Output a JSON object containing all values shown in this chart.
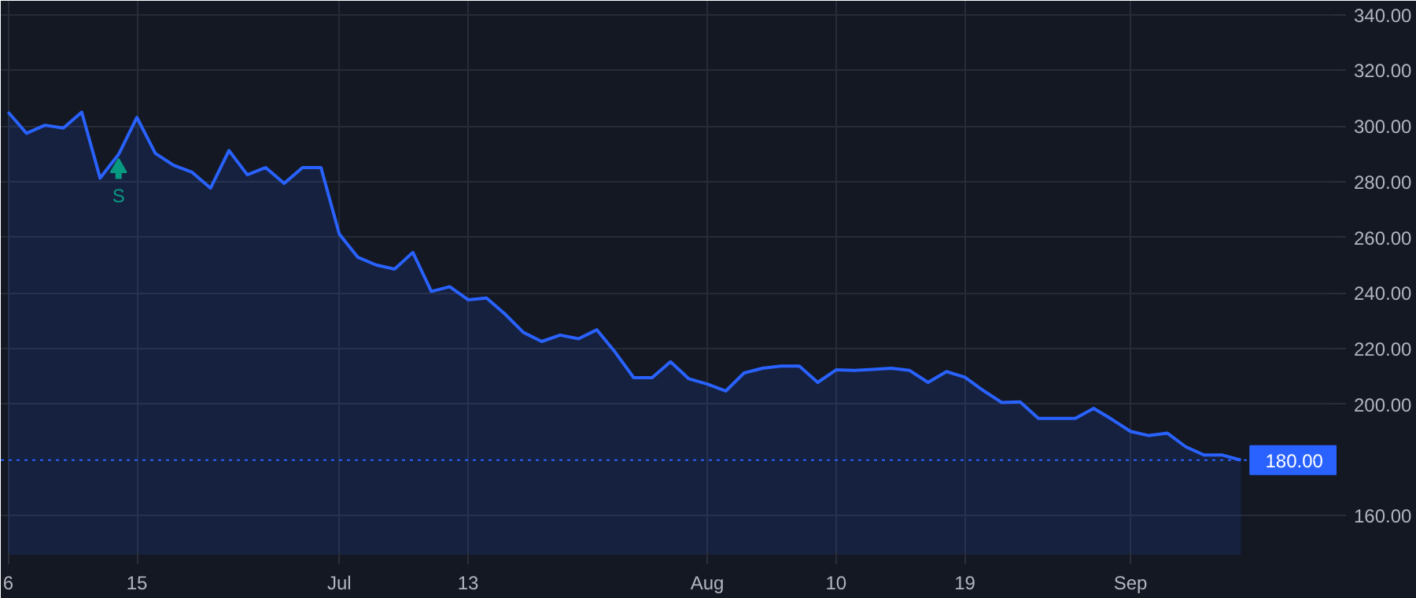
{
  "chart_data": {
    "type": "area",
    "categories": [
      "6",
      null,
      null,
      null,
      null,
      null,
      null,
      "15",
      null,
      null,
      null,
      null,
      null,
      null,
      null,
      null,
      null,
      null,
      "Jul",
      null,
      null,
      null,
      null,
      null,
      null,
      "13",
      null,
      null,
      null,
      null,
      null,
      null,
      null,
      null,
      null,
      null,
      null,
      null,
      "Aug",
      null,
      null,
      null,
      null,
      null,
      null,
      "10",
      null,
      null,
      null,
      null,
      null,
      null,
      "19",
      null,
      null,
      null,
      null,
      null,
      null,
      null,
      null,
      "Sep",
      null,
      null,
      null,
      null,
      null,
      null
    ],
    "series": [
      {
        "color": "#2962ff",
        "values": [
          305.0,
          297.4,
          300.3,
          299.3,
          305.0,
          281.3,
          289.8,
          303.1,
          290.2,
          285.9,
          283.4,
          277.7,
          291.2,
          282.5,
          285.1,
          279.4,
          285.1,
          285.1,
          261.2,
          252.9,
          250.1,
          248.6,
          254.6,
          240.6,
          242.3,
          237.6,
          238.2,
          232.5,
          225.9,
          222.6,
          224.9,
          223.6,
          226.8,
          218.7,
          209.6,
          209.6,
          215.3,
          209.2,
          207.3,
          204.8,
          211.3,
          213.0,
          213.8,
          213.8,
          207.9,
          212.4,
          212.2,
          212.6,
          213.0,
          212.2,
          207.9,
          211.8,
          209.8,
          205.0,
          200.7,
          200.9,
          195.0,
          195.0,
          195.0,
          198.6,
          194.6,
          190.3,
          188.8,
          189.7,
          184.8,
          181.8,
          181.8,
          180.0
        ]
      },
      {
        "type": "scatter",
        "name": "S",
        "color": "#089981",
        "marker": "triangle",
        "values": [
          null,
          null,
          null,
          null,
          null,
          null,
          285,
          null,
          null,
          null,
          null,
          null,
          null,
          null,
          null,
          null,
          null,
          null,
          null,
          null,
          null,
          null,
          null,
          null,
          null,
          null,
          null,
          null,
          null,
          null,
          null,
          null,
          null,
          null,
          null,
          null,
          null,
          null,
          null,
          null,
          null,
          null,
          null,
          null,
          null,
          null,
          null,
          null,
          null,
          null,
          null,
          null,
          null,
          null,
          null,
          null,
          null,
          null,
          null,
          null,
          null,
          null,
          null,
          null,
          null,
          null,
          null,
          null
        ]
      }
    ],
    "ylim": [
      146,
      345
    ],
    "yticks": [
      {
        "value": 160,
        "label": "160.00"
      },
      {
        "value": 200,
        "label": "200.00"
      },
      {
        "value": 220,
        "label": "220.00"
      },
      {
        "value": 240,
        "label": "240.00"
      },
      {
        "value": 260,
        "label": "260.00"
      },
      {
        "value": 280,
        "label": "280.00"
      },
      {
        "value": 300,
        "label": "300.00"
      },
      {
        "value": 320,
        "label": "320.00"
      },
      {
        "value": 340,
        "label": "340.00"
      }
    ],
    "ref_lines": [
      {
        "axis": "y",
        "value": 180,
        "label": "180.00",
        "color": "#2962ff",
        "line_style": "dotted"
      }
    ],
    "grid": true,
    "marker": "none",
    "line_style": "solid"
  }
}
